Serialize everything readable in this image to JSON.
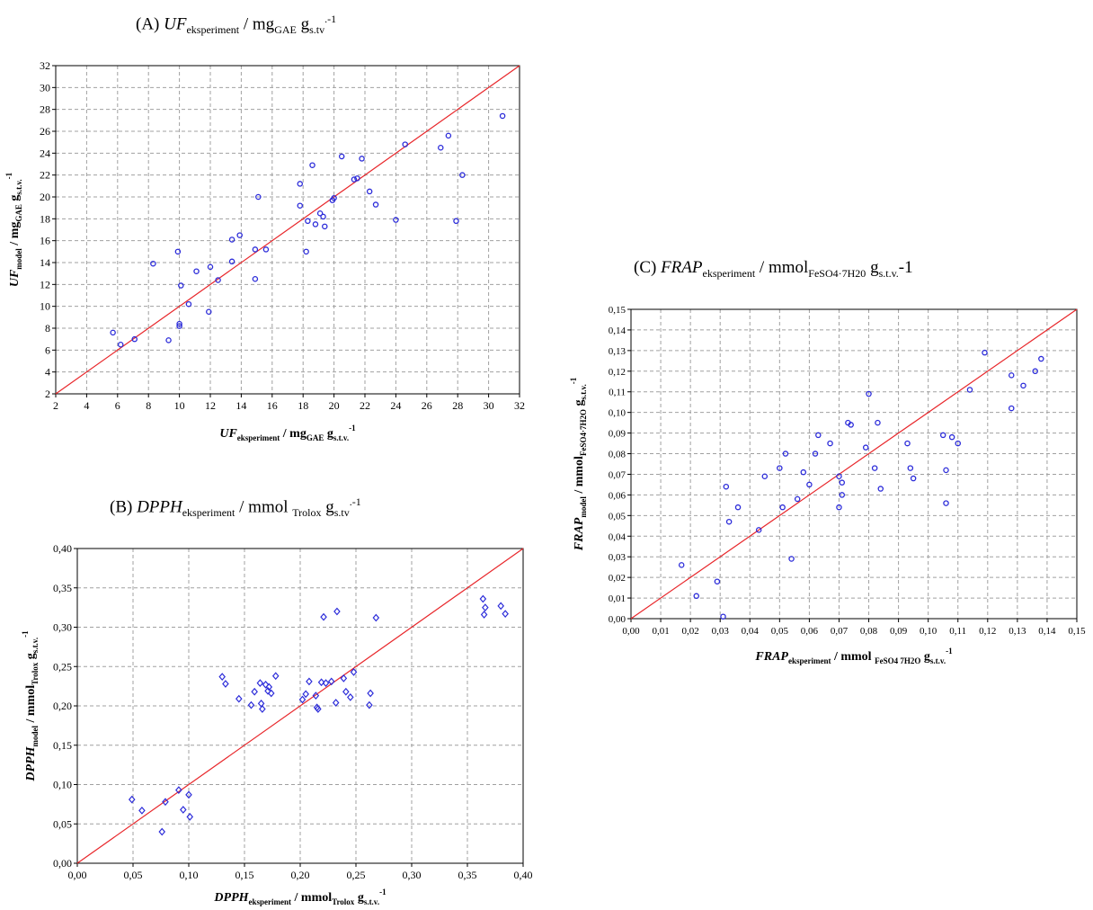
{
  "titles": {
    "A": {
      "prefix": "(A) ",
      "var": "UF",
      "sub": "eksperiment",
      "mid": " / mg",
      "unit_sub": "GAE",
      "tail": " g",
      "tail_sub": "s.tv",
      "sup": ".-1"
    },
    "B": {
      "prefix": "(B) ",
      "var": "DPPH",
      "sub": "eksperiment",
      "mid": " / mmol ",
      "unit_sub": "Trolox",
      "tail": " g",
      "tail_sub": "s.tv",
      "sup": ".-1"
    },
    "C": {
      "prefix": "(C) ",
      "var": "FRAP",
      "sub": "eksperiment",
      "mid": " / mmol",
      "unit_sub": "FeSO4·7H20",
      "tail": " g",
      "tail_sub": "s.t.v.",
      "sup": "-1"
    }
  },
  "chart_data": [
    {
      "id": "A",
      "type": "scatter",
      "xlim": [
        2,
        32
      ],
      "ylim": [
        2,
        32
      ],
      "xticks": [
        2,
        4,
        6,
        8,
        10,
        12,
        14,
        16,
        18,
        20,
        22,
        24,
        26,
        28,
        30,
        32
      ],
      "yticks": [
        2,
        4,
        6,
        8,
        10,
        12,
        14,
        16,
        18,
        20,
        22,
        24,
        26,
        28,
        30,
        32
      ],
      "decimals": 0,
      "grid": true,
      "xlabel": {
        "var": "UF",
        "sub": "eksperiment",
        "mid": " / mg",
        "unit_sub": "GAE",
        "tail": " g",
        "tail_sub": "s.t.v.",
        "sup": "-1"
      },
      "ylabel": {
        "var": "UF",
        "sub": "model",
        "mid": " / mg",
        "unit_sub": "GAE",
        "tail": " g",
        "tail_sub": "s.t.v.",
        "sup": "-1"
      },
      "reference_line": {
        "from": [
          2,
          2
        ],
        "to": [
          32,
          32
        ],
        "color": "#e8262a"
      },
      "marker_color": "#2b2bd9",
      "points": [
        [
          5.7,
          7.6
        ],
        [
          6.2,
          6.5
        ],
        [
          7.1,
          7.0
        ],
        [
          8.3,
          13.9
        ],
        [
          9.3,
          6.9
        ],
        [
          9.9,
          15.0
        ],
        [
          10.0,
          8.2
        ],
        [
          10.0,
          8.4
        ],
        [
          10.1,
          11.9
        ],
        [
          10.6,
          10.2
        ],
        [
          11.1,
          13.2
        ],
        [
          11.9,
          9.5
        ],
        [
          12.0,
          13.6
        ],
        [
          12.5,
          12.4
        ],
        [
          13.4,
          16.1
        ],
        [
          13.4,
          14.1
        ],
        [
          13.9,
          16.5
        ],
        [
          14.9,
          15.2
        ],
        [
          14.9,
          12.5
        ],
        [
          15.1,
          20.0
        ],
        [
          15.6,
          15.2
        ],
        [
          17.8,
          21.2
        ],
        [
          17.8,
          19.2
        ],
        [
          18.2,
          15.0
        ],
        [
          18.3,
          17.8
        ],
        [
          18.6,
          22.9
        ],
        [
          18.8,
          17.5
        ],
        [
          19.1,
          18.5
        ],
        [
          19.3,
          18.2
        ],
        [
          19.4,
          17.3
        ],
        [
          19.9,
          19.7
        ],
        [
          20.0,
          19.9
        ],
        [
          20.5,
          23.7
        ],
        [
          21.3,
          21.6
        ],
        [
          21.5,
          21.7
        ],
        [
          21.8,
          23.5
        ],
        [
          22.3,
          20.5
        ],
        [
          22.7,
          19.3
        ],
        [
          24.0,
          17.9
        ],
        [
          24.6,
          24.8
        ],
        [
          26.9,
          24.5
        ],
        [
          27.4,
          25.6
        ],
        [
          27.9,
          17.8
        ],
        [
          28.3,
          22.0
        ],
        [
          30.9,
          27.4
        ]
      ]
    },
    {
      "id": "B",
      "type": "scatter",
      "xlim": [
        0,
        0.4
      ],
      "ylim": [
        0,
        0.4
      ],
      "xticks": [
        0,
        0.05,
        0.1,
        0.15,
        0.2,
        0.25,
        0.3,
        0.35,
        0.4
      ],
      "yticks": [
        0,
        0.05,
        0.1,
        0.15,
        0.2,
        0.25,
        0.3,
        0.35,
        0.4
      ],
      "decimals": 2,
      "grid": true,
      "xlabel": {
        "var": "DPPH",
        "sub": "eksperiment",
        "mid": " / mmol",
        "unit_sub": "Trolox",
        "tail": " g",
        "tail_sub": "s.t.v.",
        "sup": "-1"
      },
      "ylabel": {
        "var": "DPPH",
        "sub": "model",
        "mid": " / mmol",
        "unit_sub": "Trolox",
        "tail": " g",
        "tail_sub": "s.t.v.",
        "sup": "-1"
      },
      "reference_line": {
        "from": [
          0,
          0
        ],
        "to": [
          0.4,
          0.4
        ],
        "color": "#e8262a"
      },
      "marker_color": "#2b2bd9",
      "points": [
        [
          0.049,
          0.081
        ],
        [
          0.058,
          0.067
        ],
        [
          0.076,
          0.04
        ],
        [
          0.079,
          0.078
        ],
        [
          0.091,
          0.093
        ],
        [
          0.095,
          0.068
        ],
        [
          0.1,
          0.087
        ],
        [
          0.101,
          0.059
        ],
        [
          0.13,
          0.237
        ],
        [
          0.133,
          0.228
        ],
        [
          0.145,
          0.209
        ],
        [
          0.156,
          0.201
        ],
        [
          0.159,
          0.218
        ],
        [
          0.164,
          0.229
        ],
        [
          0.165,
          0.203
        ],
        [
          0.166,
          0.196
        ],
        [
          0.169,
          0.227
        ],
        [
          0.171,
          0.219
        ],
        [
          0.172,
          0.224
        ],
        [
          0.174,
          0.216
        ],
        [
          0.178,
          0.238
        ],
        [
          0.202,
          0.208
        ],
        [
          0.205,
          0.215
        ],
        [
          0.208,
          0.231
        ],
        [
          0.214,
          0.213
        ],
        [
          0.215,
          0.198
        ],
        [
          0.216,
          0.196
        ],
        [
          0.219,
          0.23
        ],
        [
          0.221,
          0.313
        ],
        [
          0.223,
          0.229
        ],
        [
          0.228,
          0.231
        ],
        [
          0.232,
          0.204
        ],
        [
          0.233,
          0.32
        ],
        [
          0.239,
          0.235
        ],
        [
          0.241,
          0.218
        ],
        [
          0.245,
          0.211
        ],
        [
          0.248,
          0.243
        ],
        [
          0.262,
          0.201
        ],
        [
          0.263,
          0.216
        ],
        [
          0.268,
          0.312
        ],
        [
          0.364,
          0.336
        ],
        [
          0.365,
          0.316
        ],
        [
          0.366,
          0.325
        ],
        [
          0.38,
          0.327
        ],
        [
          0.384,
          0.317
        ]
      ]
    },
    {
      "id": "C",
      "type": "scatter",
      "xlim": [
        0,
        0.15
      ],
      "ylim": [
        0,
        0.15
      ],
      "xticks": [
        0,
        0.01,
        0.02,
        0.03,
        0.04,
        0.05,
        0.06,
        0.07,
        0.08,
        0.09,
        0.1,
        0.11,
        0.12,
        0.13,
        0.14,
        0.15
      ],
      "yticks": [
        0,
        0.01,
        0.02,
        0.03,
        0.04,
        0.05,
        0.06,
        0.07,
        0.08,
        0.09,
        0.1,
        0.11,
        0.12,
        0.13,
        0.14,
        0.15
      ],
      "decimals": 2,
      "grid": true,
      "xlabel": {
        "var": "FRAP",
        "sub": "eksperiment",
        "mid": " / mmol ",
        "unit_sub": "FeSO4 7H2O",
        "tail": " g",
        "tail_sub": "s.t.v.",
        "sup": "-1"
      },
      "ylabel": {
        "var": "FRAP",
        "sub": "model",
        "mid": " / mmol",
        "unit_sub": "FeSO4·7H2O",
        "tail": " g",
        "tail_sub": "s.t.v.",
        "sup": "-1"
      },
      "reference_line": {
        "from": [
          0,
          0
        ],
        "to": [
          0.15,
          0.15
        ],
        "color": "#e8262a"
      },
      "marker_color": "#2b2bd9",
      "points": [
        [
          0.017,
          0.026
        ],
        [
          0.022,
          0.011
        ],
        [
          0.029,
          0.018
        ],
        [
          0.031,
          0.001
        ],
        [
          0.032,
          0.064
        ],
        [
          0.033,
          0.047
        ],
        [
          0.036,
          0.054
        ],
        [
          0.043,
          0.043
        ],
        [
          0.045,
          0.069
        ],
        [
          0.05,
          0.073
        ],
        [
          0.051,
          0.054
        ],
        [
          0.052,
          0.08
        ],
        [
          0.054,
          0.029
        ],
        [
          0.056,
          0.058
        ],
        [
          0.058,
          0.071
        ],
        [
          0.06,
          0.065
        ],
        [
          0.062,
          0.08
        ],
        [
          0.063,
          0.089
        ],
        [
          0.067,
          0.085
        ],
        [
          0.07,
          0.054
        ],
        [
          0.07,
          0.069
        ],
        [
          0.071,
          0.066
        ],
        [
          0.071,
          0.06
        ],
        [
          0.073,
          0.095
        ],
        [
          0.074,
          0.094
        ],
        [
          0.079,
          0.083
        ],
        [
          0.08,
          0.109
        ],
        [
          0.082,
          0.073
        ],
        [
          0.083,
          0.095
        ],
        [
          0.084,
          0.063
        ],
        [
          0.093,
          0.085
        ],
        [
          0.094,
          0.073
        ],
        [
          0.095,
          0.068
        ],
        [
          0.105,
          0.089
        ],
        [
          0.106,
          0.072
        ],
        [
          0.106,
          0.056
        ],
        [
          0.108,
          0.088
        ],
        [
          0.11,
          0.085
        ],
        [
          0.114,
          0.111
        ],
        [
          0.119,
          0.129
        ],
        [
          0.128,
          0.118
        ],
        [
          0.128,
          0.102
        ],
        [
          0.132,
          0.113
        ],
        [
          0.136,
          0.12
        ],
        [
          0.138,
          0.126
        ]
      ]
    }
  ]
}
